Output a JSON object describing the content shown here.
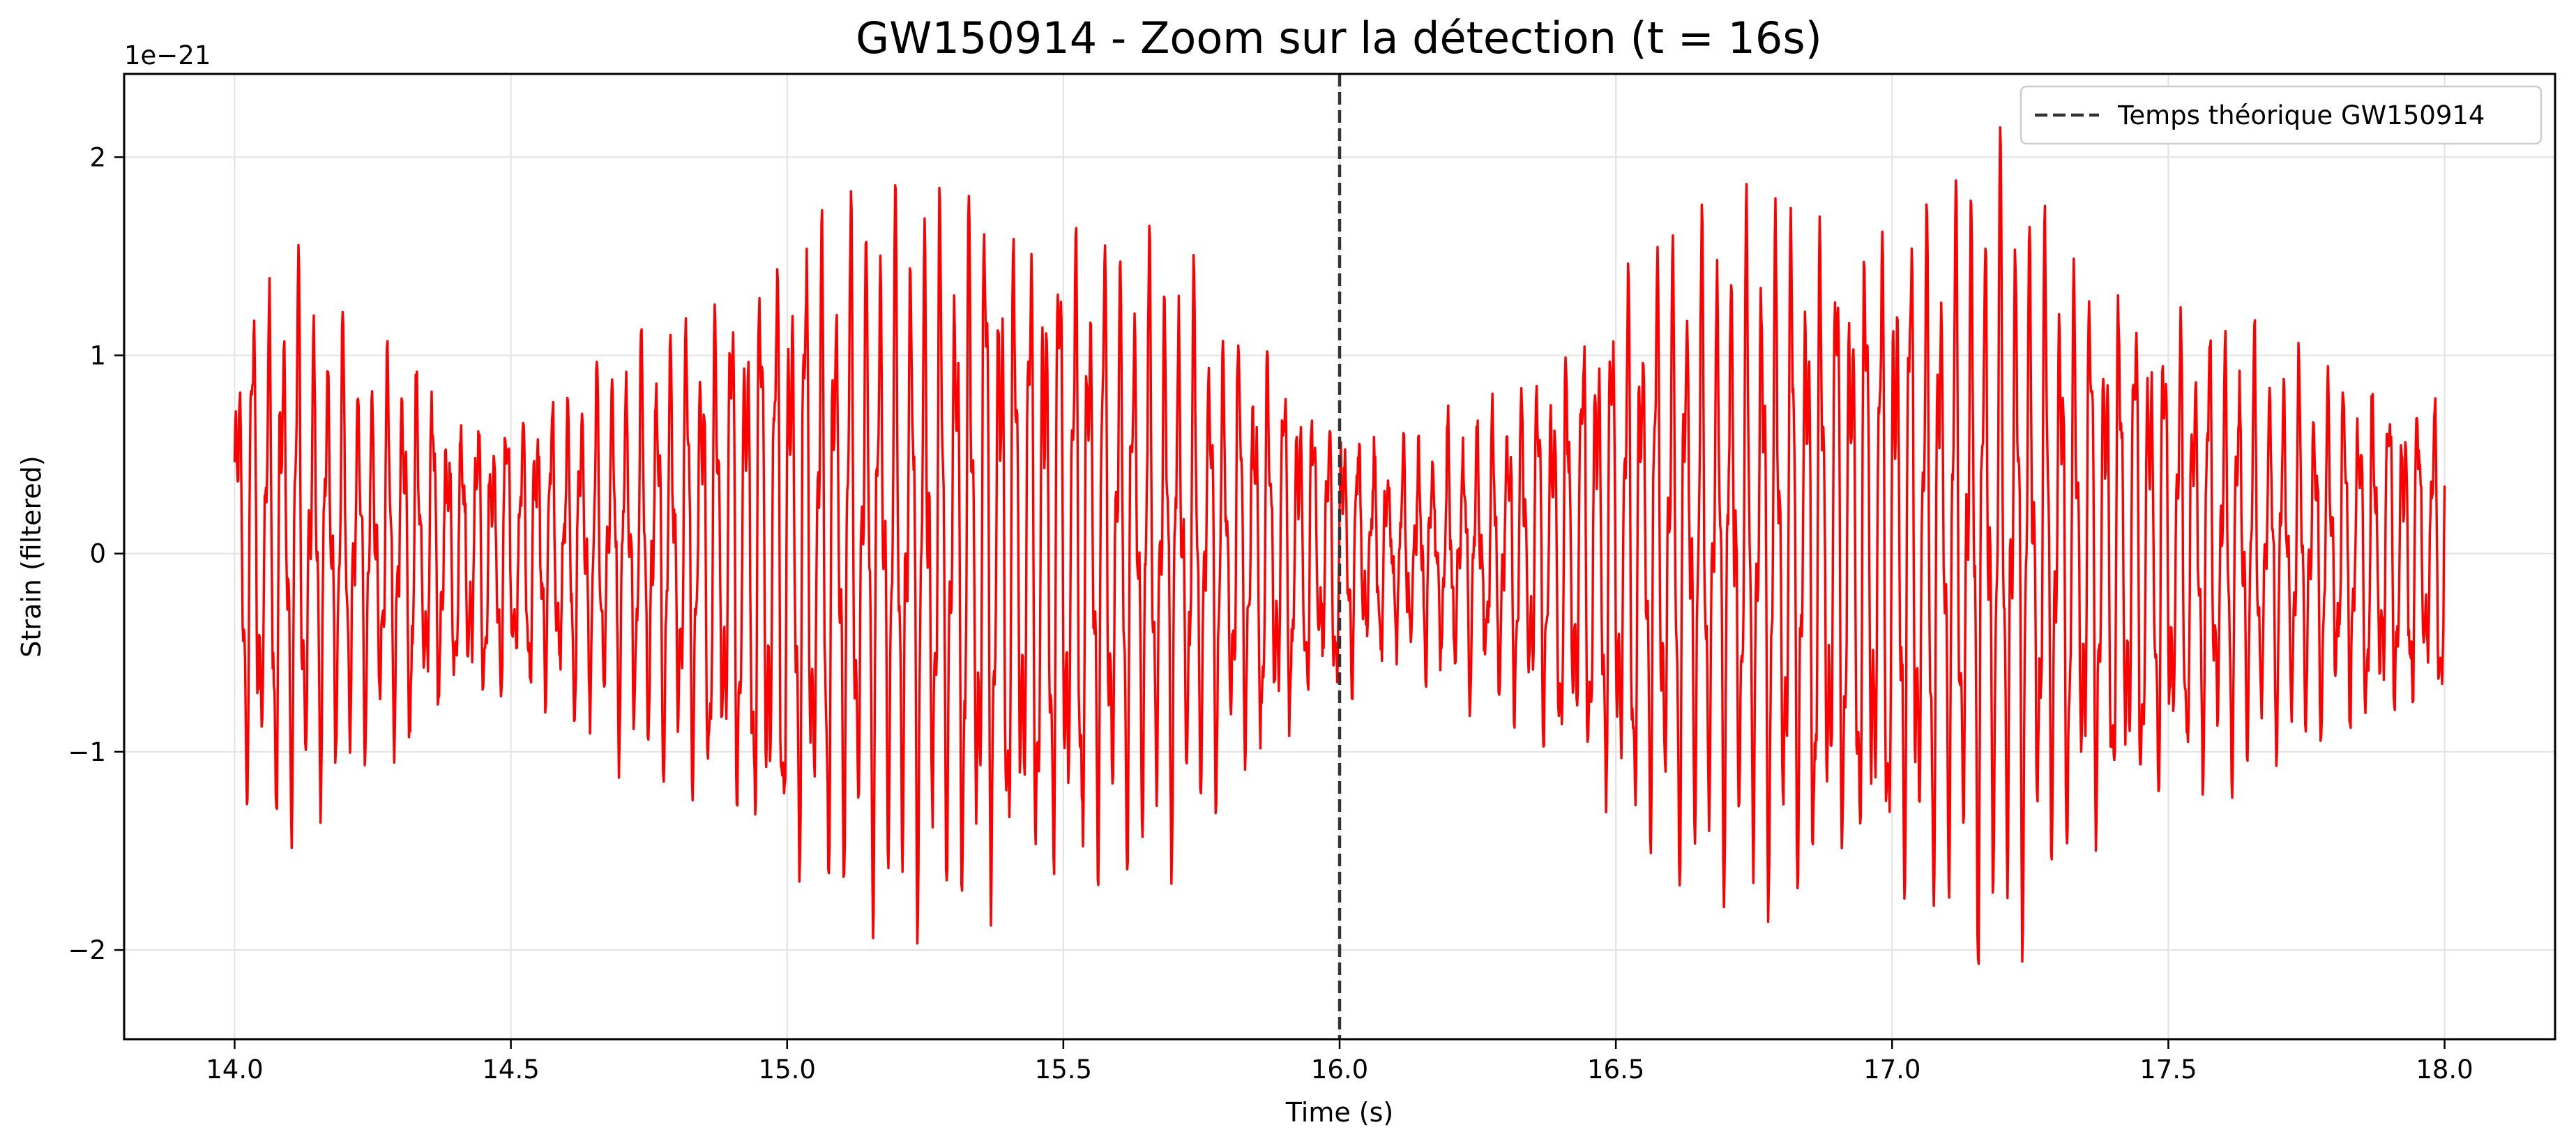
{
  "chart_data": {
    "type": "line",
    "title": "GW150914 - Zoom sur la détection (t = 16s)",
    "xlabel": "Time (s)",
    "ylabel": "Strain (filtered)",
    "y_offset_label": "1e−21",
    "xlim": [
      13.8,
      18.2
    ],
    "ylim": [
      -2.45e-21,
      2.42e-21
    ],
    "x_ticks": [
      14.0,
      14.5,
      15.0,
      15.5,
      16.0,
      16.5,
      17.0,
      17.5,
      18.0
    ],
    "x_tick_labels": [
      "14.0",
      "14.5",
      "15.0",
      "15.5",
      "16.0",
      "16.5",
      "17.0",
      "17.5",
      "18.0"
    ],
    "y_ticks": [
      -2e-21,
      -1e-21,
      0,
      1e-21,
      2e-21
    ],
    "y_tick_labels": [
      "−2",
      "−1",
      "0",
      "1",
      "2"
    ],
    "grid": true,
    "legend": {
      "position": "top-right",
      "entries": [
        {
          "label": "Temps théorique GW150914",
          "style": "dashed",
          "color": "#333333"
        }
      ]
    },
    "vline": {
      "x": 16.0,
      "style": "dashed",
      "color": "#333333"
    },
    "series": [
      {
        "color": "#ff0000",
        "x": [
          14.0,
          14.02,
          14.05,
          14.08,
          14.11,
          14.15,
          14.2,
          14.25,
          14.3,
          14.35,
          14.4,
          14.5,
          14.6,
          14.7,
          14.8,
          14.9,
          15.0,
          15.1,
          15.2,
          15.3,
          15.35,
          15.4,
          15.5,
          15.6,
          15.7,
          15.8,
          15.9,
          15.97,
          16.0,
          16.05,
          16.1,
          16.2,
          16.3,
          16.4,
          16.5,
          16.6,
          16.7,
          16.8,
          16.9,
          17.0,
          17.1,
          17.15,
          17.2,
          17.3,
          17.4,
          17.5,
          17.6,
          17.7,
          17.8,
          17.9,
          18.0
        ],
        "envelope": [
          1.3,
          1.5,
          1.45,
          1.6,
          1.7,
          1.3,
          1.3,
          1.0,
          1.2,
          1.0,
          0.8,
          0.85,
          0.9,
          1.1,
          1.3,
          1.6,
          1.9,
          1.95,
          1.95,
          1.95,
          2.2,
          1.95,
          1.95,
          1.8,
          1.6,
          1.3,
          1.1,
          0.8,
          0.9,
          0.6,
          0.6,
          0.7,
          0.9,
          1.2,
          1.6,
          1.8,
          1.8,
          2.0,
          1.9,
          2.0,
          2.0,
          2.15,
          2.2,
          1.8,
          1.6,
          1.4,
          1.3,
          1.1,
          1.0,
          1.0,
          0.9
        ]
      }
    ]
  }
}
